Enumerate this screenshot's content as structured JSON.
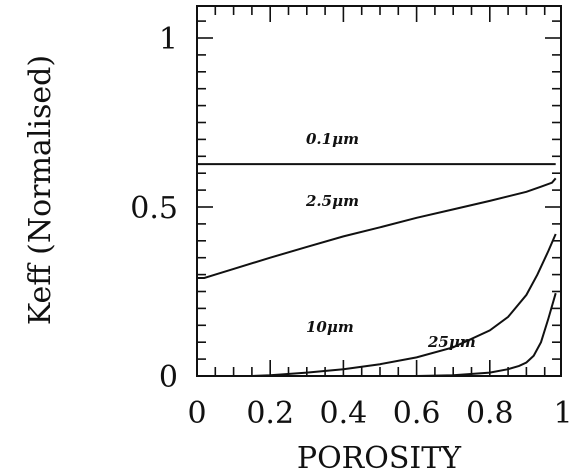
{
  "chart_data": {
    "type": "line",
    "xlabel": "POROSITY",
    "ylabel": "Keff (Normalised)",
    "xlim": [
      0,
      1
    ],
    "ylim": [
      0,
      1.08
    ],
    "x_ticks": [
      "0",
      "0.2",
      "0.4",
      "0.6",
      "0.8",
      "1"
    ],
    "x_tick_values": [
      0,
      0.2,
      0.4,
      0.6,
      0.8,
      1
    ],
    "y_ticks": [
      "0",
      "0.5",
      "1"
    ],
    "y_tick_values": [
      0,
      0.5,
      1
    ],
    "grid": false,
    "series": [
      {
        "name": "0.1μm",
        "x": [
          0,
          0.2,
          0.4,
          0.6,
          0.8,
          0.98
        ],
        "y": [
          0.627,
          0.627,
          0.627,
          0.627,
          0.627,
          0.627
        ]
      },
      {
        "name": "2.5μm",
        "x": [
          0,
          0.02,
          0.05,
          0.1,
          0.2,
          0.3,
          0.4,
          0.5,
          0.6,
          0.7,
          0.8,
          0.9,
          0.94,
          0.97,
          0.98
        ],
        "y": [
          0.29,
          0.29,
          0.3,
          0.317,
          0.35,
          0.382,
          0.413,
          0.44,
          0.468,
          0.493,
          0.518,
          0.545,
          0.56,
          0.572,
          0.585
        ]
      },
      {
        "name": "10μm",
        "x": [
          0.15,
          0.2,
          0.3,
          0.4,
          0.5,
          0.6,
          0.7,
          0.8,
          0.85,
          0.9,
          0.93,
          0.96,
          0.98
        ],
        "y": [
          0,
          0.002,
          0.01,
          0.02,
          0.035,
          0.055,
          0.085,
          0.135,
          0.175,
          0.24,
          0.3,
          0.37,
          0.42
        ]
      },
      {
        "name": "25μm",
        "x": [
          0.6,
          0.7,
          0.8,
          0.85,
          0.88,
          0.9,
          0.92,
          0.94,
          0.96,
          0.98
        ],
        "y": [
          0,
          0.002,
          0.01,
          0.02,
          0.03,
          0.04,
          0.06,
          0.1,
          0.17,
          0.245
        ]
      }
    ],
    "labels": [
      {
        "text": "0.1μm",
        "series": 0
      },
      {
        "text": "2.5μm",
        "series": 1
      },
      {
        "text": "10μm",
        "series": 2
      },
      {
        "text": "25μm",
        "series": 3
      }
    ]
  }
}
